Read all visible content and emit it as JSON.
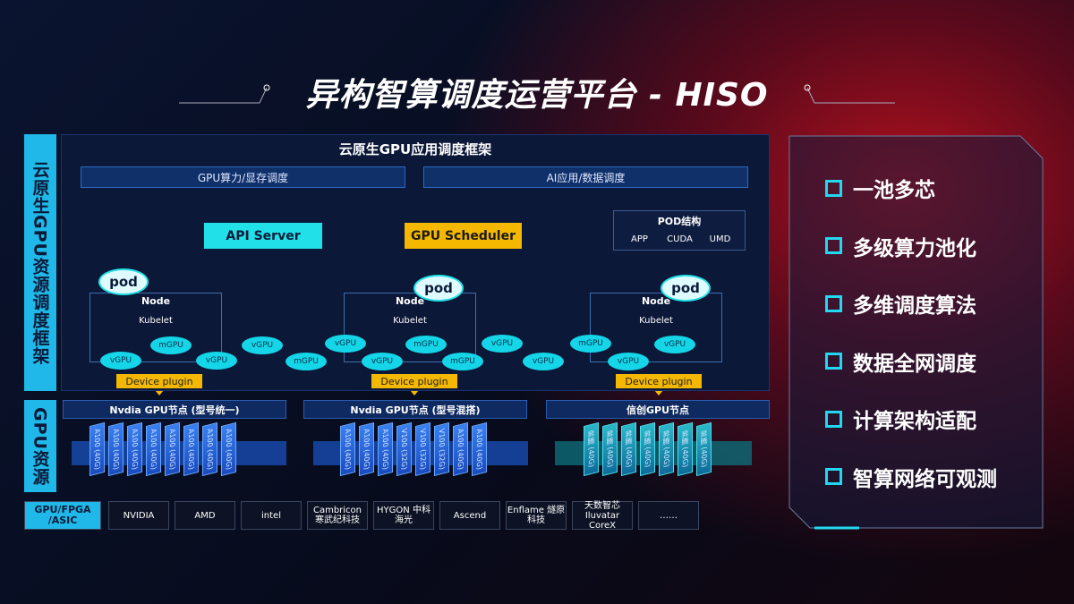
{
  "title": "异构智算调度运营平台 - HISO",
  "side_labels": [
    "云原生GPU资源调度框架",
    "GPU资源"
  ],
  "framework": {
    "title": "云原生GPU应用调度框架",
    "bars": [
      "GPU算力/显存调度",
      "AI应用/数据调度"
    ],
    "api_server": "API Server",
    "gpu_scheduler": "GPU Scheduler",
    "pod_structure": {
      "title": "POD结构",
      "items": [
        "APP",
        "CUDA",
        "UMD"
      ]
    },
    "nodes": [
      {
        "pod": "pod",
        "node": "Node",
        "kubelet": "Kubelet",
        "plugin": "Device plugin"
      },
      {
        "pod": "pod",
        "node": "Node",
        "kubelet": "Kubelet",
        "plugin": "Device plugin"
      },
      {
        "pod": "pod",
        "node": "Node",
        "kubelet": "Kubelet",
        "plugin": "Device plugin"
      }
    ],
    "virtual_gpus": [
      "vGPU",
      "mGPU",
      "vGPU",
      "vGPU",
      "mGPU",
      "vGPU",
      "vGPU",
      "mGPU",
      "mGPU",
      "vGPU",
      "vGPU",
      "mGPU",
      "vGPU",
      "vGPU"
    ]
  },
  "gpu_groups": [
    {
      "title": "Nvdia GPU节点 (型号统一)",
      "cards": [
        "A100 (40G)",
        "A100 (40G)",
        "A100 (40G)",
        "A100 (40G)",
        "A100 (40G)",
        "A100 (40G)",
        "A100 (40G)",
        "A100 (40G)"
      ]
    },
    {
      "title": "Nvdia GPU节点 (型号混搭)",
      "cards": [
        "A100 (40G)",
        "A100 (40G)",
        "A100 (40G)",
        "V100 (32G)",
        "V100 (32G)",
        "V100 (32G)",
        "A100 (40G)",
        "A100 (40G)"
      ]
    },
    {
      "title": "信创GPU节点",
      "cards": [
        "昇腾 (40G)",
        "昇腾 (40G)",
        "昇腾 (40G)",
        "昇腾 (40G)",
        "昇腾 (40G)",
        "昇腾 (40G)",
        "昇腾 (40G)"
      ]
    }
  ],
  "vendors": [
    "GPU/FPGA /ASIC",
    "NVIDIA",
    "AMD",
    "intel",
    "Cambricon 寒武纪科技",
    "HYGON 中科海光",
    "Ascend",
    "Enflame 燧原科技",
    "天数智芯 Iluvatar CoreX",
    "……"
  ],
  "features": [
    "一池多芯",
    "多级算力池化",
    "多维调度算法",
    "数据全网调度",
    "计算架构适配",
    "智算网络可观测"
  ]
}
